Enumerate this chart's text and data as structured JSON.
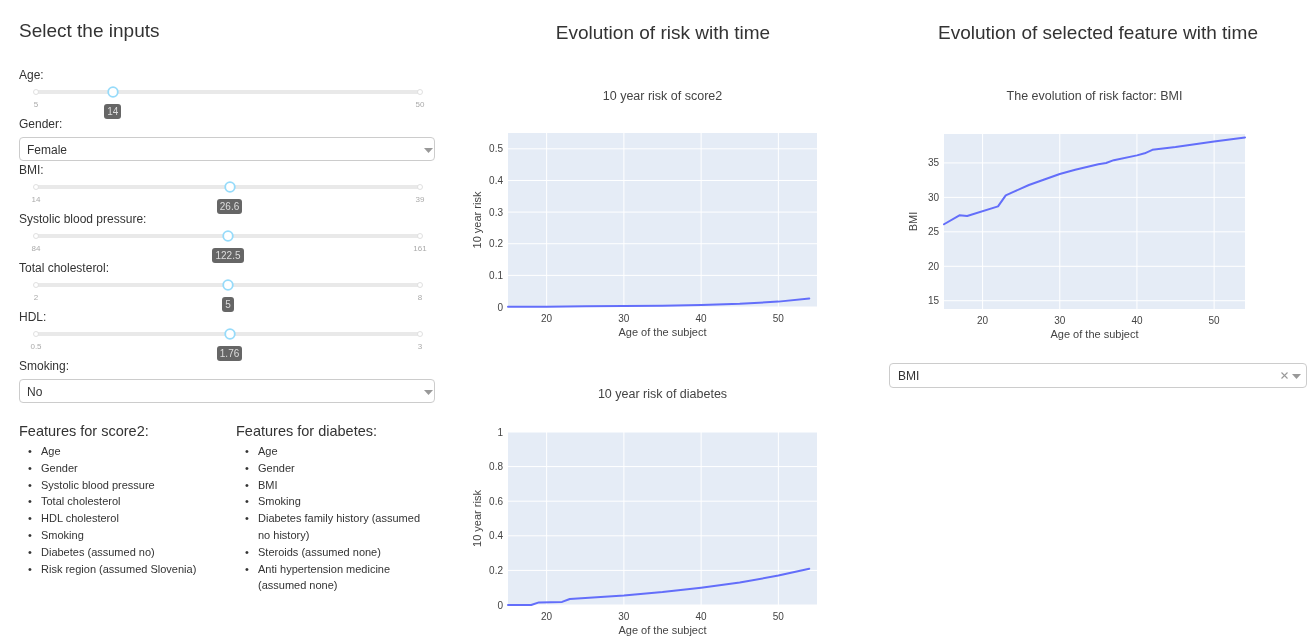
{
  "chart_data": [
    {
      "type": "other",
      "title": "Select the inputs",
      "annotations": [
        "Age:",
        "5",
        "14",
        "50",
        "Gender:",
        "Female",
        "BMI:",
        "14",
        "26.6",
        "39",
        "Systolic blood pressure:",
        "84",
        "122.5",
        "161",
        "Total cholesterol:",
        "2",
        "5",
        "8",
        "HDL:",
        "0.5",
        "1.76",
        "3",
        "Smoking:",
        "No",
        "Features for score2:",
        "• Age",
        "• Gender",
        "• Systolic blood pressure",
        "• Total cholesterol",
        "• HDL cholesterol",
        "• Smoking",
        "• Diabetes (assumed no)",
        "• Risk region (assumed Slovenia)",
        "Features for diabetes:",
        "• Age",
        "• Gender",
        "• BMI",
        "• Smoking",
        "• Diabetes family history (assumed no history)",
        "• Steroids (assumed none)",
        "• Anti hypertension medicine (assumed none)"
      ]
    },
    {
      "type": "line",
      "title": "Evolution of risk with time",
      "subtitle": "10 year risk of score2",
      "xlabel": "Age of the subject",
      "ylabel": "10 year risk",
      "color": "#636efa",
      "grid": true,
      "x": [
        15,
        20,
        25,
        30,
        35,
        40,
        45,
        50,
        54
      ],
      "values": [
        0.001,
        0.001,
        0.002,
        0.003,
        0.004,
        0.006,
        0.01,
        0.017,
        0.027
      ],
      "xlim": [
        15,
        55
      ],
      "ylim": [
        0,
        0.55
      ],
      "xticks": [
        20,
        30,
        40,
        50
      ],
      "yticks": [
        0,
        0.1,
        0.2,
        0.3,
        0.4,
        0.5
      ]
    },
    {
      "type": "line",
      "title": "10 year risk of diabetes",
      "xlabel": "Age of the subject",
      "ylabel": "10 year risk",
      "color": "#636efa",
      "grid": true,
      "x": [
        15,
        18,
        19,
        22,
        23,
        26,
        30,
        35,
        40,
        45,
        50,
        54
      ],
      "values": [
        0,
        0,
        0.015,
        0.018,
        0.035,
        0.043,
        0.055,
        0.075,
        0.1,
        0.13,
        0.17,
        0.21
      ],
      "xlim": [
        15,
        55
      ],
      "ylim": [
        0,
        1
      ],
      "xticks": [
        20,
        30,
        40,
        50
      ],
      "yticks": [
        0,
        0.2,
        0.4,
        0.6,
        0.8,
        1
      ]
    },
    {
      "type": "line",
      "title": "Evolution of selected feature with time",
      "subtitle": "The evolution of risk factor: BMI",
      "xlabel": "Age of the subject",
      "ylabel": "BMI",
      "color": "#636efa",
      "grid": true,
      "annotations": [
        "BMI"
      ],
      "x": [
        15,
        17,
        18,
        22,
        23,
        24,
        26,
        28,
        30,
        32,
        35,
        36,
        37,
        40,
        41,
        42,
        45,
        50,
        54
      ],
      "values": [
        26.1,
        27.4,
        27.3,
        28.7,
        30.3,
        30.8,
        31.8,
        32.6,
        33.4,
        34.0,
        34.8,
        35.0,
        35.4,
        36.1,
        36.4,
        36.9,
        37.3,
        38.1,
        38.7
      ],
      "xlim": [
        15,
        54
      ],
      "ylim": [
        13.8,
        39.2
      ],
      "xticks": [
        20,
        30,
        40,
        50
      ],
      "yticks": [
        15,
        20,
        25,
        30,
        35
      ]
    }
  ]
}
